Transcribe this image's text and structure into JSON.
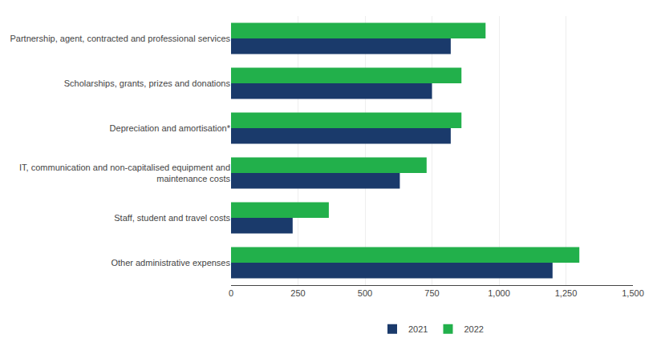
{
  "chart_data": {
    "type": "bar",
    "orientation": "horizontal",
    "categories": [
      "Partnership, agent, contracted and professional services",
      "Scholarships, grants, prizes and donations",
      "Depreciation and amortisation*",
      "IT, communication and non-capitalised equipment and\nmaintenance costs",
      "Staff, student and travel costs",
      "Other administrative expenses"
    ],
    "series": [
      {
        "name": "2021",
        "color": "#1a3a6b",
        "values": [
          820,
          750,
          820,
          630,
          230,
          1200
        ]
      },
      {
        "name": "2022",
        "color": "#22b04b",
        "values": [
          950,
          860,
          860,
          730,
          365,
          1300
        ]
      }
    ],
    "xlim": [
      0,
      1500
    ],
    "xticks": [
      0,
      250,
      500,
      750,
      {
        "value": 1000,
        "label": "1,000"
      },
      {
        "value": 1250,
        "label": "1,250"
      },
      {
        "value": 1500,
        "label": "1,500"
      }
    ],
    "grid": true,
    "legend": "bottom"
  }
}
